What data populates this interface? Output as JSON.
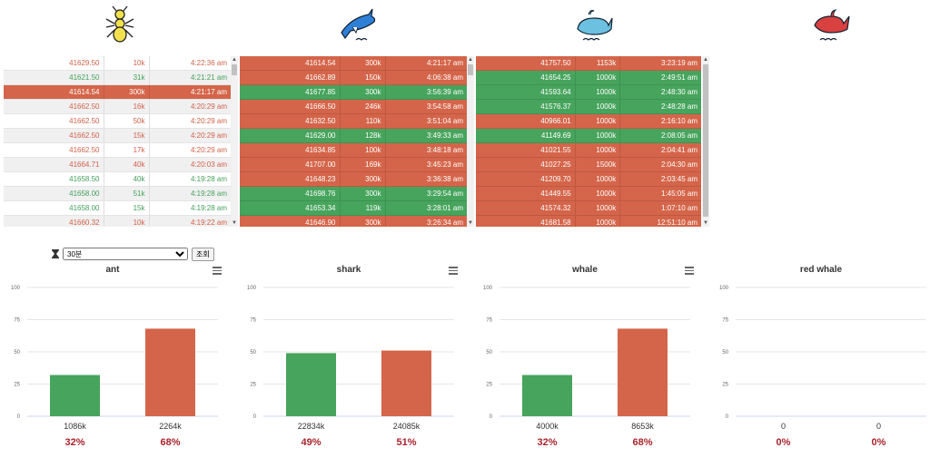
{
  "headers": [
    {
      "icon": "ant-icon",
      "color": "#f2e14c"
    },
    {
      "icon": "shark-icon",
      "color": "#2e7fd6"
    },
    {
      "icon": "whale-icon",
      "color": "#6cc0e0"
    },
    {
      "icon": "red-whale-icon",
      "color": "#d94040"
    }
  ],
  "tables": [
    {
      "name": "ant",
      "rows": [
        {
          "price": "41629.50",
          "qty": "10k",
          "time": "4:22:36 am",
          "side": "sell"
        },
        {
          "price": "41621.50",
          "qty": "31k",
          "time": "4:21:21 am",
          "side": "buy"
        },
        {
          "price": "41614.54",
          "qty": "300k",
          "time": "4:21:17 am",
          "side": "hl"
        },
        {
          "price": "41662.50",
          "qty": "16k",
          "time": "4:20:29 am",
          "side": "sell"
        },
        {
          "price": "41662.50",
          "qty": "50k",
          "time": "4:20:29 am",
          "side": "sell"
        },
        {
          "price": "41662.50",
          "qty": "15k",
          "time": "4:20:29 am",
          "side": "sell"
        },
        {
          "price": "41662.50",
          "qty": "17k",
          "time": "4:20:29 am",
          "side": "sell"
        },
        {
          "price": "41664.71",
          "qty": "40k",
          "time": "4:20:03 am",
          "side": "sell"
        },
        {
          "price": "41658.50",
          "qty": "40k",
          "time": "4:19:28 am",
          "side": "buy"
        },
        {
          "price": "41658.00",
          "qty": "51k",
          "time": "4:19:28 am",
          "side": "buy"
        },
        {
          "price": "41658.00",
          "qty": "15k",
          "time": "4:19:28 am",
          "side": "buy"
        },
        {
          "price": "41660.32",
          "qty": "10k",
          "time": "4:19:22 am",
          "side": "sell"
        }
      ]
    },
    {
      "name": "shark",
      "rows": [
        {
          "price": "41614.54",
          "qty": "300k",
          "time": "4:21:17 am",
          "side": "r"
        },
        {
          "price": "41662.89",
          "qty": "150k",
          "time": "4:06:38 am",
          "side": "r"
        },
        {
          "price": "41677.85",
          "qty": "300k",
          "time": "3:56:39 am",
          "side": "g"
        },
        {
          "price": "41666.50",
          "qty": "246k",
          "time": "3:54:58 am",
          "side": "r"
        },
        {
          "price": "41632.50",
          "qty": "110k",
          "time": "3:51:04 am",
          "side": "r"
        },
        {
          "price": "41629.00",
          "qty": "128k",
          "time": "3:49:33 am",
          "side": "g"
        },
        {
          "price": "41634.85",
          "qty": "100k",
          "time": "3:48:18 am",
          "side": "r"
        },
        {
          "price": "41707.00",
          "qty": "169k",
          "time": "3:45:23 am",
          "side": "r"
        },
        {
          "price": "41648.23",
          "qty": "300k",
          "time": "3:36:38 am",
          "side": "r"
        },
        {
          "price": "41698.76",
          "qty": "300k",
          "time": "3:29:54 am",
          "side": "g"
        },
        {
          "price": "41653.34",
          "qty": "119k",
          "time": "3:28:01 am",
          "side": "g"
        },
        {
          "price": "41646.90",
          "qty": "300k",
          "time": "3:26:34 am",
          "side": "r"
        }
      ]
    },
    {
      "name": "whale",
      "rows": [
        {
          "price": "41757.50",
          "qty": "1153k",
          "time": "3:23:19 am",
          "side": "r"
        },
        {
          "price": "41654.25",
          "qty": "1000k",
          "time": "2:49:51 am",
          "side": "g"
        },
        {
          "price": "41593.64",
          "qty": "1000k",
          "time": "2:48:30 am",
          "side": "g"
        },
        {
          "price": "41576.37",
          "qty": "1000k",
          "time": "2:48:28 am",
          "side": "g"
        },
        {
          "price": "40966.01",
          "qty": "1000k",
          "time": "2:16:10 am",
          "side": "r"
        },
        {
          "price": "41149.69",
          "qty": "1000k",
          "time": "2:08:05 am",
          "side": "g"
        },
        {
          "price": "41021.55",
          "qty": "1000k",
          "time": "2:04:41 am",
          "side": "r"
        },
        {
          "price": "41027.25",
          "qty": "1500k",
          "time": "2:04:30 am",
          "side": "r"
        },
        {
          "price": "41209.70",
          "qty": "1000k",
          "time": "2:03:45 am",
          "side": "r"
        },
        {
          "price": "41449.55",
          "qty": "1000k",
          "time": "1:45:05 am",
          "side": "r"
        },
        {
          "price": "41574.32",
          "qty": "1000k",
          "time": "1:07:10 am",
          "side": "r"
        },
        {
          "price": "41681.58",
          "qty": "1000k",
          "time": "12:51:10 am",
          "side": "r"
        }
      ]
    }
  ],
  "controls": {
    "timer_icon": "hourglass-icon",
    "period_selected": "30분",
    "search_label": "조회"
  },
  "chart_data": [
    {
      "type": "bar",
      "title": "ant",
      "ylim": [
        0,
        100
      ],
      "yticks": [
        "0",
        "25",
        "50",
        "75",
        "100"
      ],
      "values": [
        32,
        68
      ],
      "categories": [
        "1086k",
        "2264k"
      ],
      "percents": [
        "32%",
        "68%"
      ],
      "colors": [
        "#47a45d",
        "#d4654a"
      ],
      "menu": true
    },
    {
      "type": "bar",
      "title": "shark",
      "ylim": [
        0,
        100
      ],
      "yticks": [
        "0",
        "25",
        "50",
        "75",
        "100"
      ],
      "values": [
        49,
        51
      ],
      "categories": [
        "22834k",
        "24085k"
      ],
      "percents": [
        "49%",
        "51%"
      ],
      "colors": [
        "#47a45d",
        "#d4654a"
      ],
      "menu": true
    },
    {
      "type": "bar",
      "title": "whale",
      "ylim": [
        0,
        100
      ],
      "yticks": [
        "0",
        "25",
        "50",
        "75",
        "100"
      ],
      "values": [
        32,
        68
      ],
      "categories": [
        "4000k",
        "8653k"
      ],
      "percents": [
        "32%",
        "68%"
      ],
      "colors": [
        "#47a45d",
        "#d4654a"
      ],
      "menu": true
    },
    {
      "type": "bar",
      "title": "red whale",
      "ylim": [
        0,
        100
      ],
      "yticks": [
        "0",
        "25",
        "50",
        "75",
        "100"
      ],
      "values": [
        0,
        0
      ],
      "categories": [
        "0",
        "0"
      ],
      "percents": [
        "0%",
        "0%"
      ],
      "colors": [
        "#47a45d",
        "#d4654a"
      ],
      "menu": false
    }
  ]
}
